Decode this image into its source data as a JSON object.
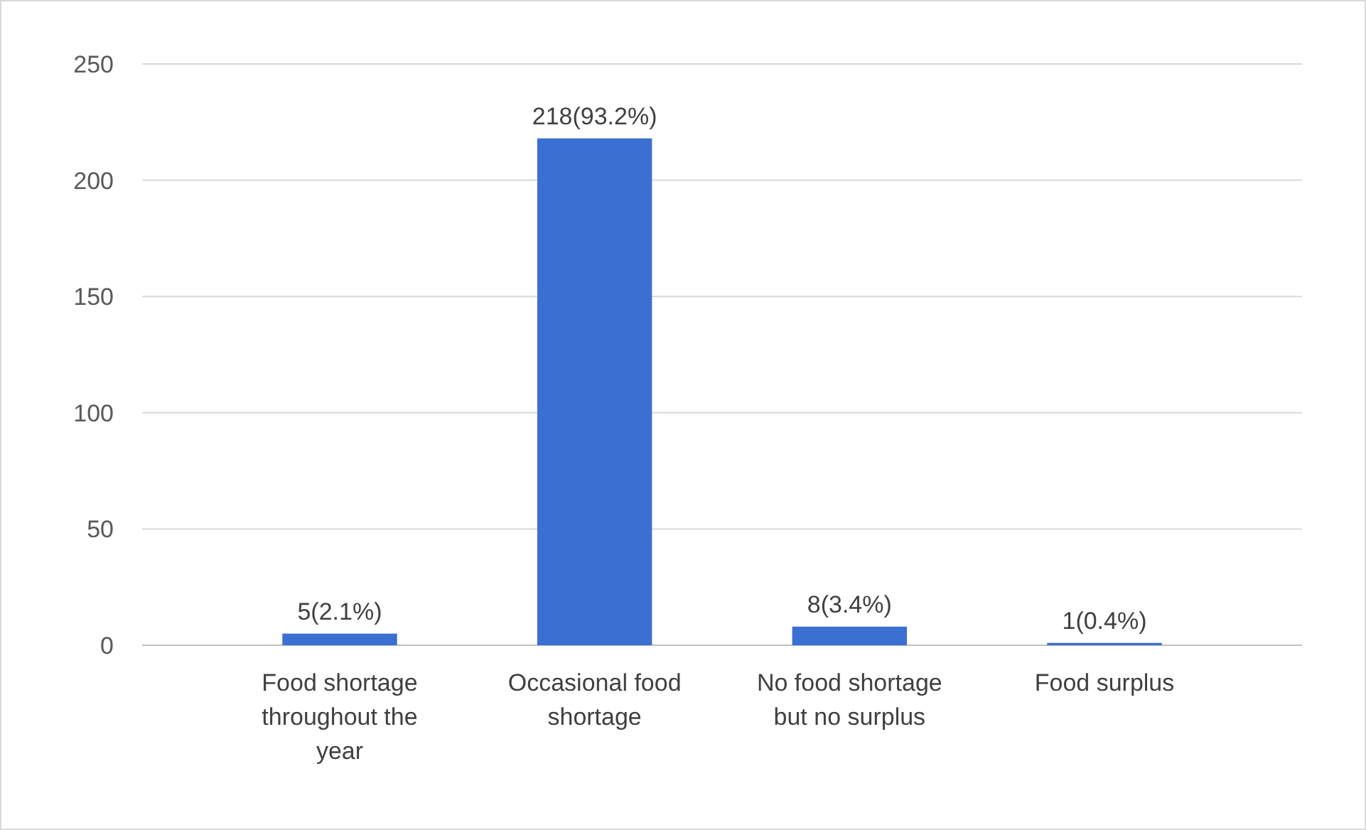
{
  "chart_data": {
    "type": "bar",
    "categories": [
      "Food shortage throughout the year",
      "Occasional food shortage",
      "No food shortage but no surplus",
      "Food surplus"
    ],
    "values": [
      5,
      218,
      8,
      1
    ],
    "value_labels": [
      "5(2.1%)",
      "218(93.2%)",
      "8(3.4%)",
      "1(0.4%)"
    ],
    "color": "#3b6fd1",
    "ylim": [
      0,
      250
    ],
    "yticks": [
      0,
      50,
      100,
      150,
      200,
      250
    ],
    "grid": "y"
  }
}
